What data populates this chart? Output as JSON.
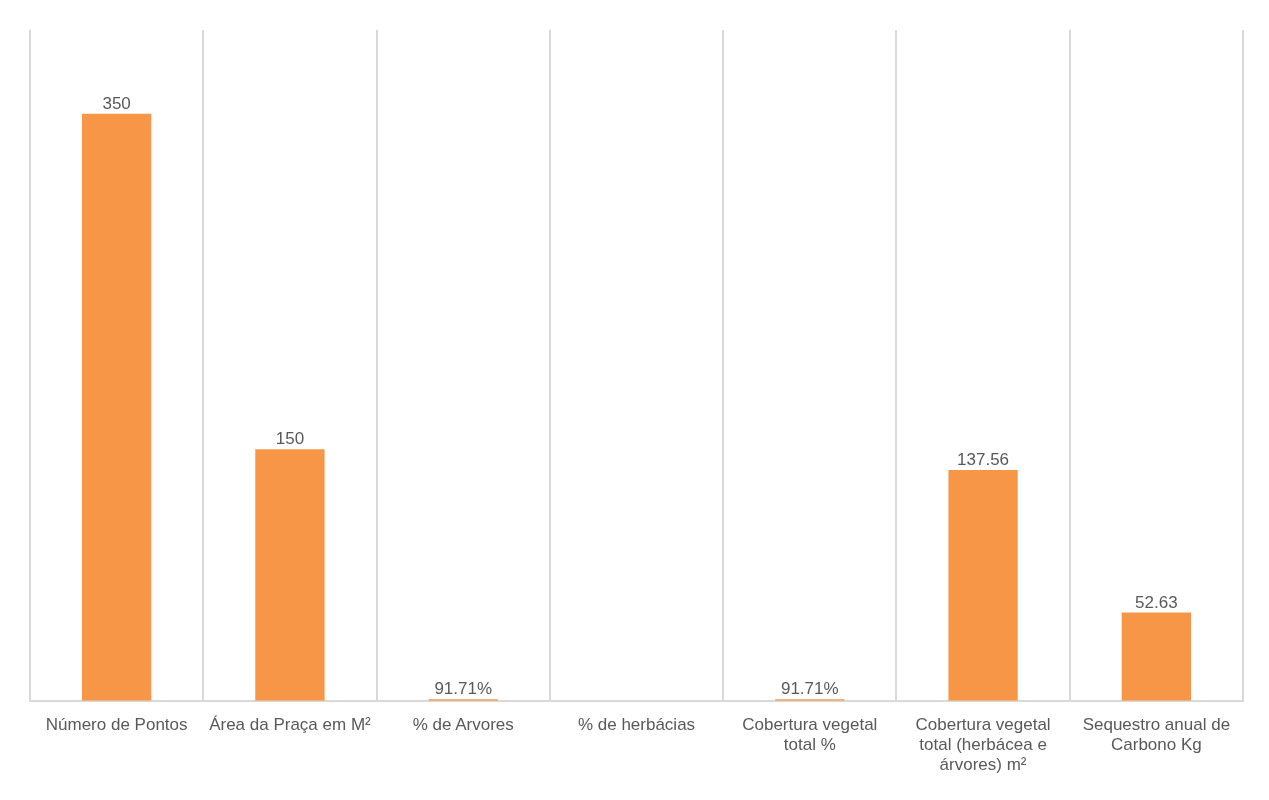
{
  "chart_data": {
    "type": "bar",
    "categories": [
      "Número de Pontos",
      "Área da Praça em M²",
      "% de Arvores",
      "% de herbácias",
      "Cobertura vegetal total %",
      "Cobertura vegetal total (herbácea e árvores) m²",
      "Sequestro anual de Carbono Kg"
    ],
    "values": [
      350,
      150,
      0.9171,
      null,
      0.9171,
      137.56,
      52.63
    ],
    "value_labels": [
      "350",
      "150",
      "91.71%",
      null,
      "91.71%",
      "137.56",
      "52.63"
    ],
    "color": "#f79646",
    "ylim": [
      0,
      400
    ],
    "grid": "x",
    "legend": false,
    "tick_labels": "x"
  }
}
